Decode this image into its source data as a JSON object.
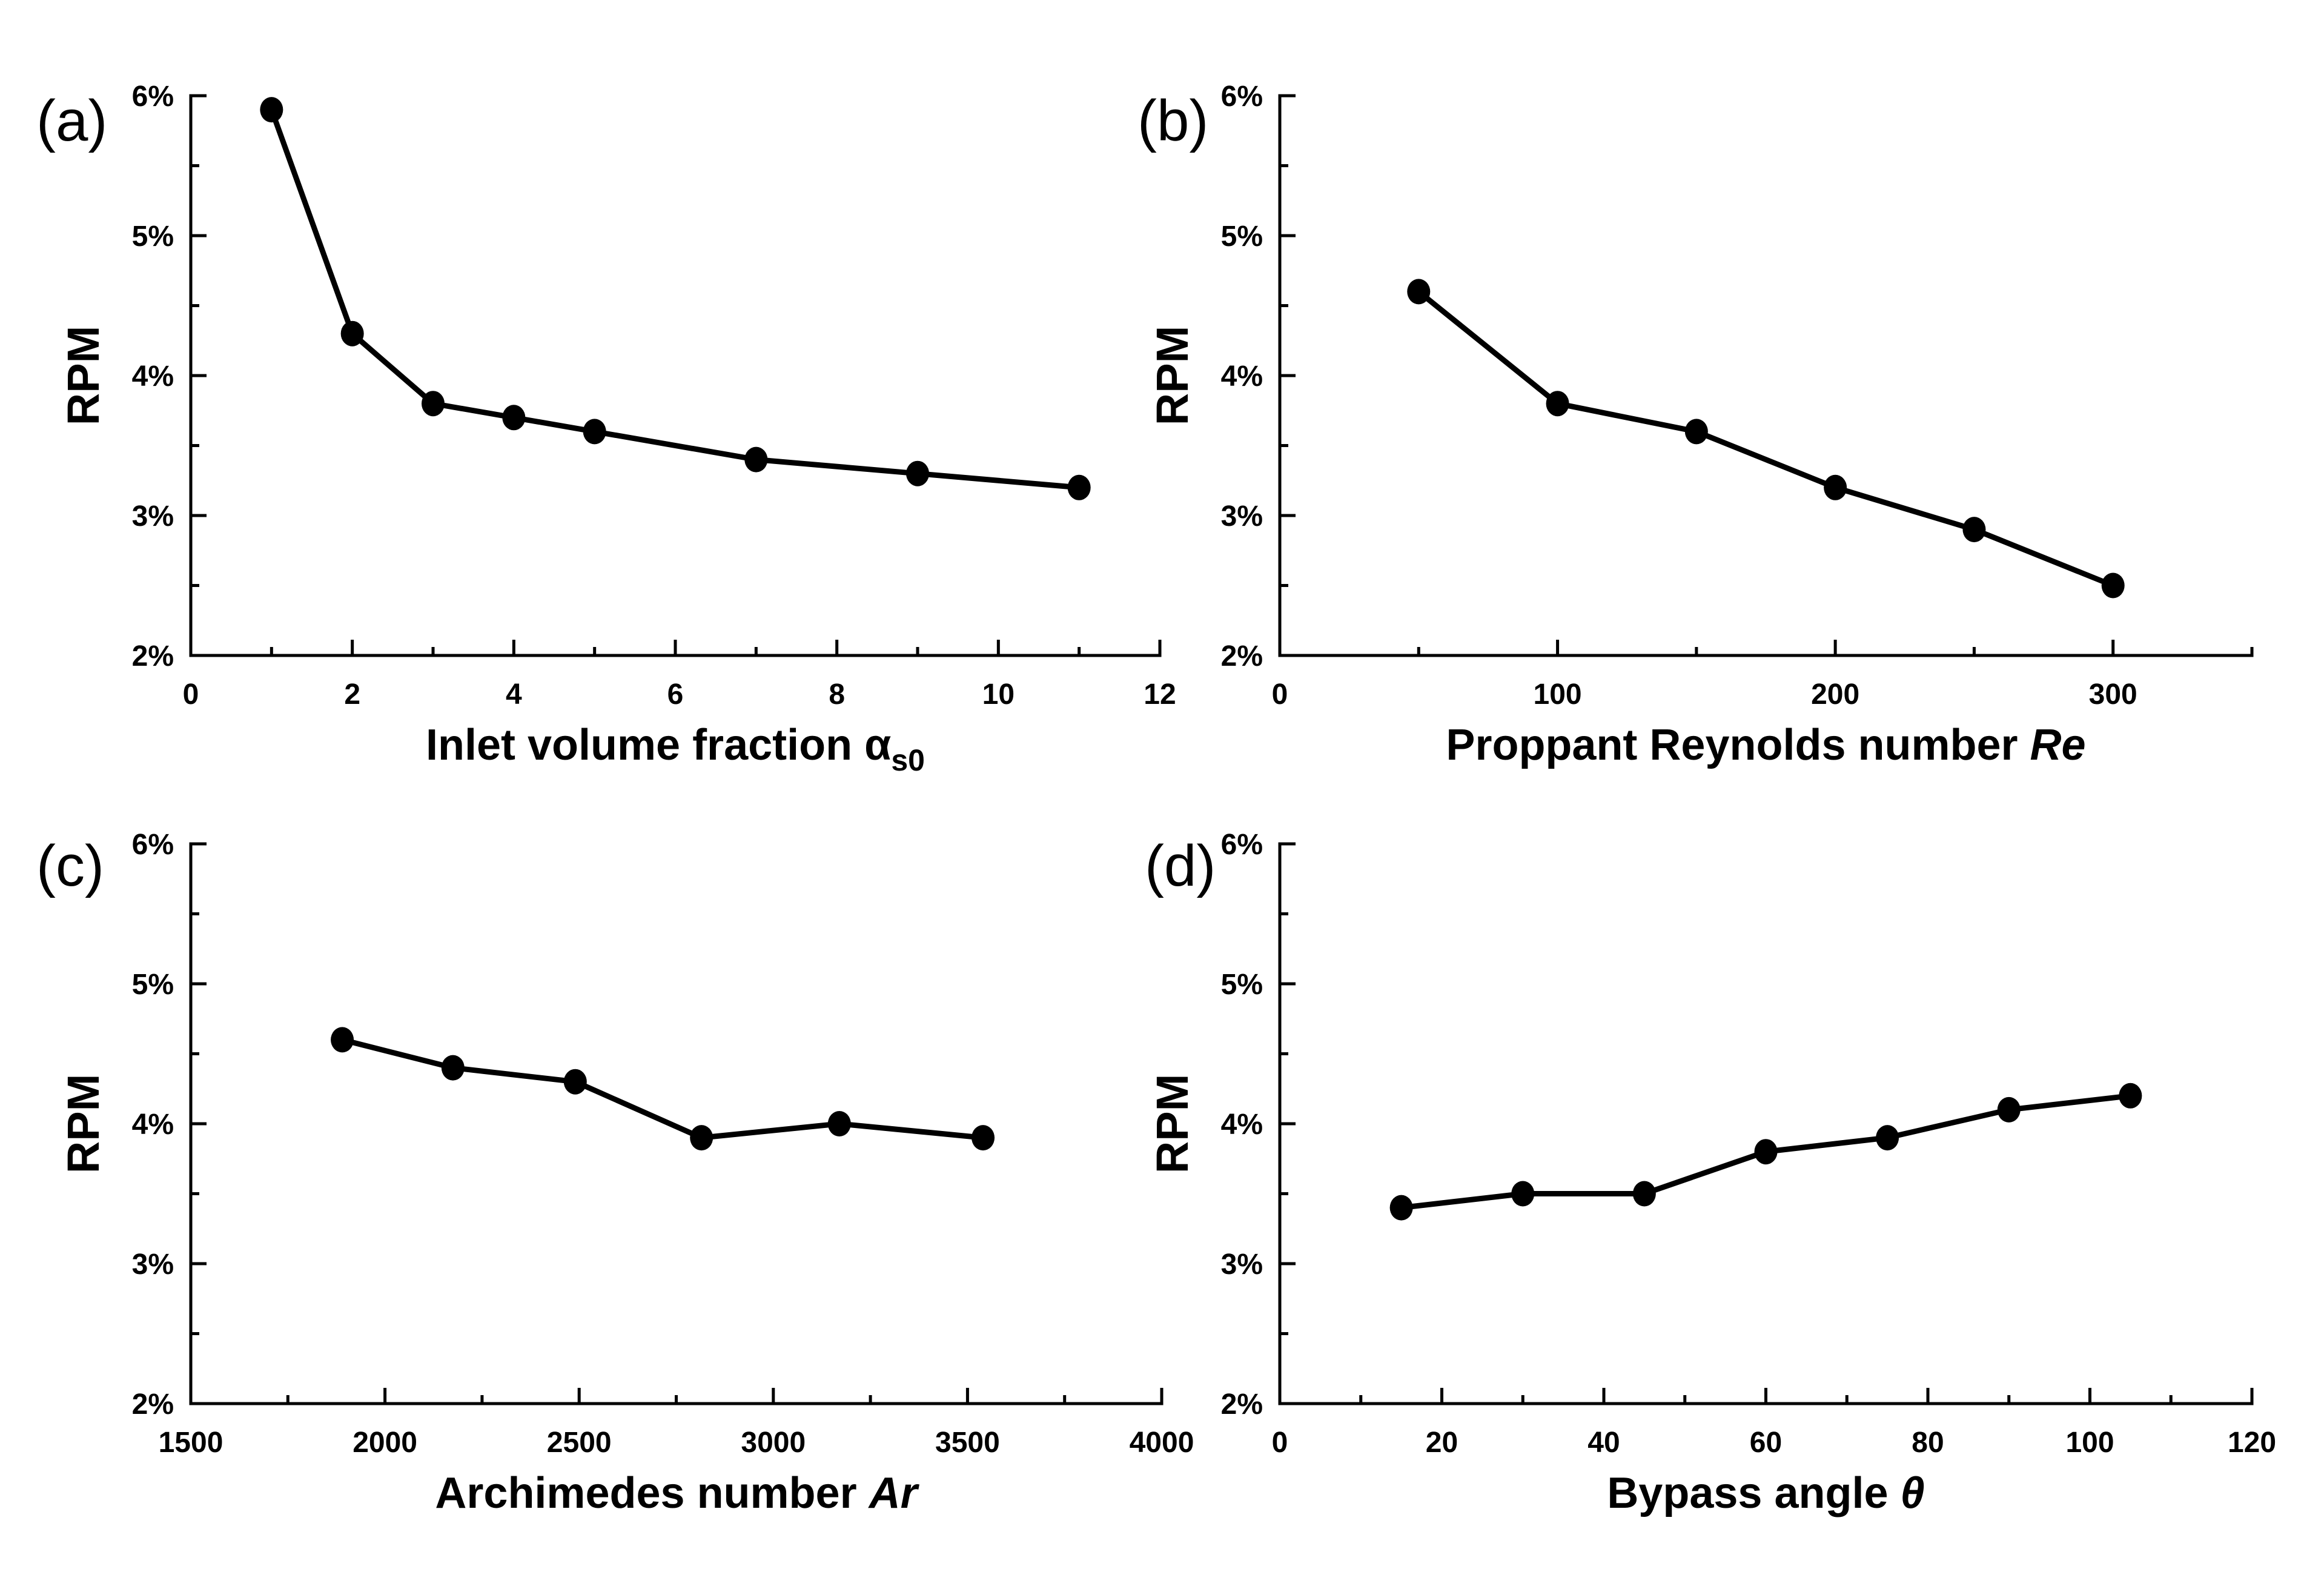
{
  "figure": {
    "background": "#ffffff",
    "foreground": "#000000",
    "shared_ylabel": "RPM",
    "panel_tags": [
      "(a)",
      "(b)",
      "(c)",
      "(d)"
    ]
  },
  "chart_data": [
    {
      "type": "line",
      "panel": "a",
      "tag": "(a)",
      "ylabel": "RPM",
      "xlabel": "Inlet volume fraction αs0",
      "xlabel_parts": [
        {
          "text": "Inlet volume fraction "
        },
        {
          "text": "α"
        },
        {
          "text": "s0",
          "style": "sub"
        }
      ],
      "x": [
        1,
        2,
        3,
        4,
        5,
        7,
        9,
        11
      ],
      "y": [
        5.9,
        4.3,
        3.8,
        3.7,
        3.6,
        3.4,
        3.3,
        3.2
      ],
      "xlim": [
        0,
        12
      ],
      "ylim": [
        2,
        6
      ],
      "x_major_step": 2,
      "x_minor_step": 1,
      "y_major_step": 1,
      "y_minor_step": 0.5,
      "y_tick_suffix": "%",
      "grid": false,
      "legend": false,
      "marker": "filled-circle",
      "line_color": "#000000"
    },
    {
      "type": "line",
      "panel": "b",
      "tag": "(b)",
      "ylabel": "RPM",
      "xlabel": "Proppant Reynolds number Re",
      "xlabel_parts": [
        {
          "text": "Proppant Reynolds number "
        },
        {
          "text": "Re",
          "style": "italic"
        }
      ],
      "x": [
        50,
        100,
        150,
        200,
        250,
        300
      ],
      "y": [
        4.6,
        3.8,
        3.6,
        3.2,
        2.9,
        2.5
      ],
      "xlim": [
        0,
        350
      ],
      "ylim": [
        2,
        6
      ],
      "x_major_step": 100,
      "x_minor_step": 50,
      "y_major_step": 1,
      "y_minor_step": 0.5,
      "y_tick_suffix": "%",
      "grid": false,
      "legend": false,
      "marker": "filled-circle",
      "line_color": "#000000"
    },
    {
      "type": "line",
      "panel": "c",
      "tag": "(c)",
      "ylabel": "RPM",
      "xlabel": "Archimedes number Ar",
      "xlabel_parts": [
        {
          "text": "Archimedes number "
        },
        {
          "text": "Ar",
          "style": "italic"
        }
      ],
      "x": [
        1890,
        2175,
        2490,
        2815,
        3170,
        3540
      ],
      "y": [
        4.6,
        4.4,
        4.3,
        3.9,
        4.0,
        3.9
      ],
      "xlim": [
        1500,
        4000
      ],
      "ylim": [
        2,
        6
      ],
      "x_major_step": 500,
      "x_minor_step": 250,
      "y_major_step": 1,
      "y_minor_step": 0.5,
      "y_tick_suffix": "%",
      "grid": false,
      "legend": false,
      "marker": "filled-circle",
      "line_color": "#000000"
    },
    {
      "type": "line",
      "panel": "d",
      "tag": "(d)",
      "ylabel": "RPM",
      "xlabel": "Bypass angle θ",
      "xlabel_parts": [
        {
          "text": "Bypass angle "
        },
        {
          "text": "θ",
          "style": "italic"
        }
      ],
      "x": [
        15,
        30,
        45,
        60,
        75,
        90,
        105
      ],
      "y": [
        3.4,
        3.5,
        3.5,
        3.8,
        3.9,
        4.1,
        4.2
      ],
      "xlim": [
        0,
        120
      ],
      "ylim": [
        2,
        6
      ],
      "x_major_step": 20,
      "x_minor_step": 10,
      "y_major_step": 1,
      "y_minor_step": 0.5,
      "y_tick_suffix": "%",
      "grid": false,
      "legend": false,
      "marker": "filled-circle",
      "line_color": "#000000"
    }
  ]
}
